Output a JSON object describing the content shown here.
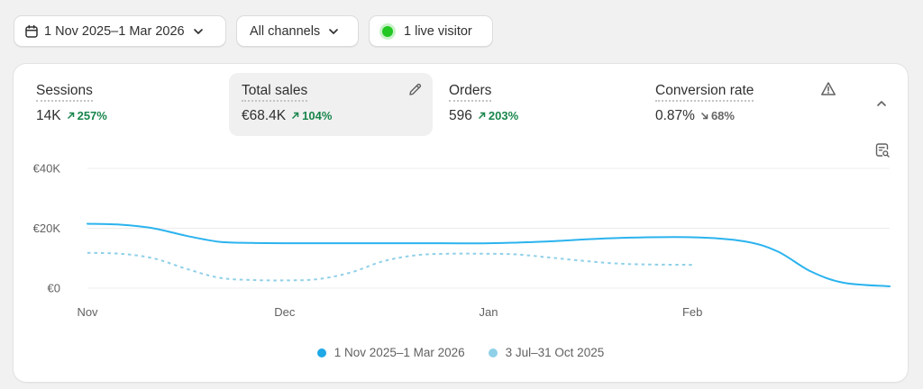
{
  "filters": {
    "date_range": "1 Nov 2025–1 Mar 2026",
    "channels": "All channels",
    "live_visitors": "1 live visitor"
  },
  "metrics": [
    {
      "label": "Sessions",
      "value": "14K",
      "change": "257%",
      "direction": "up"
    },
    {
      "label": "Total sales",
      "value": "€68.4K",
      "change": "104%",
      "direction": "up"
    },
    {
      "label": "Orders",
      "value": "596",
      "change": "203%",
      "direction": "up"
    },
    {
      "label": "Conversion rate",
      "value": "0.87%",
      "change": "68%",
      "direction": "down"
    }
  ],
  "icons": {
    "date": "calendar-icon",
    "dropdown": "chevron-down-icon",
    "edit": "pencil-icon",
    "warning": "warning-icon",
    "collapse": "chevron-up-icon",
    "chart_tool": "chart-search-icon"
  },
  "colors": {
    "current_series": "#2bb3ee",
    "previous_series": "#8fd0e8",
    "positive_change": "#19864d",
    "live_dot": "#22c722"
  },
  "chart_data": {
    "type": "line",
    "y_tick_labels": [
      "€0",
      "€20K",
      "€40K"
    ],
    "y_ticks": [
      0,
      20000,
      40000
    ],
    "ylim": [
      0,
      40000
    ],
    "x_tick_labels": [
      "Nov",
      "Dec",
      "Jan",
      "Feb"
    ],
    "x_tick_positions": [
      0,
      30,
      61,
      92
    ],
    "xlim": [
      0,
      122
    ],
    "grid": true,
    "legend": "bottom-center",
    "series": [
      {
        "name": "1 Nov 2025–1 Mar 2026",
        "style": "solid",
        "x": [
          0,
          5,
          10,
          15,
          20,
          25,
          30,
          40,
          50,
          61,
          70,
          80,
          92,
          100,
          105,
          110,
          115,
          122
        ],
        "values": [
          21500,
          21200,
          20000,
          17500,
          15500,
          15100,
          15000,
          15000,
          15000,
          15000,
          15600,
          16700,
          17000,
          15600,
          12200,
          5600,
          1800,
          600
        ]
      },
      {
        "name": "3 Jul–31 Oct 2025",
        "style": "dashed",
        "x": [
          0,
          5,
          10,
          15,
          20,
          25,
          30,
          35,
          40,
          45,
          50,
          55,
          60,
          65,
          70,
          75,
          80,
          85,
          92
        ],
        "values": [
          11800,
          11500,
          10000,
          6500,
          3500,
          2700,
          2600,
          3000,
          5200,
          9000,
          11000,
          11500,
          11500,
          11300,
          10300,
          9200,
          8300,
          7900,
          7800
        ]
      }
    ]
  }
}
